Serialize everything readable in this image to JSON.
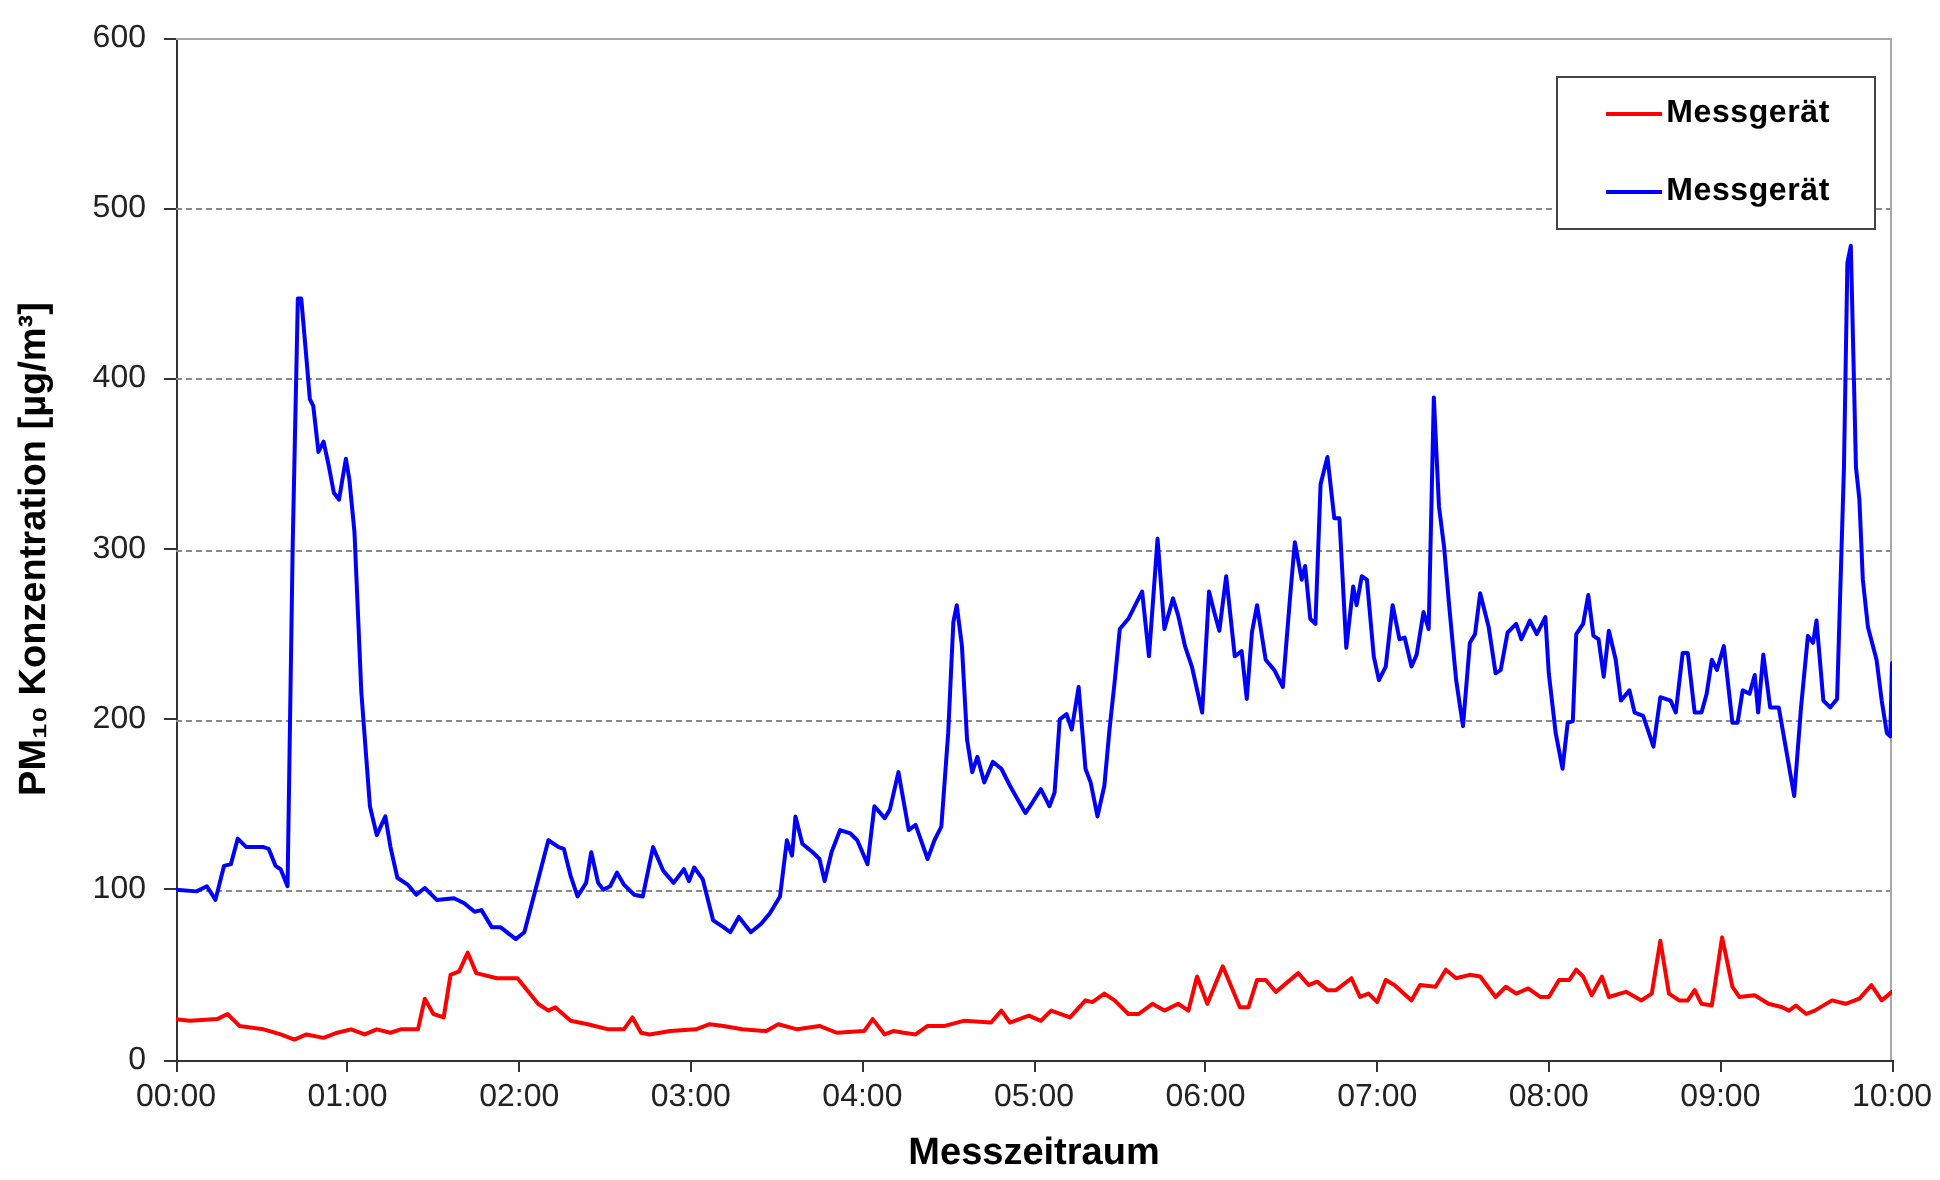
{
  "chart_data": {
    "type": "line",
    "xlabel": "Messzeitraum",
    "ylabel": "PM₁₀ Konzentration [µg/m³]",
    "xlim": [
      0,
      10
    ],
    "xticks": [
      {
        "value": 0,
        "label": "00:00"
      },
      {
        "value": 1,
        "label": "01:00"
      },
      {
        "value": 2,
        "label": "02:00"
      },
      {
        "value": 3,
        "label": "03:00"
      },
      {
        "value": 4,
        "label": "04:00"
      },
      {
        "value": 5,
        "label": "05:00"
      },
      {
        "value": 6,
        "label": "06:00"
      },
      {
        "value": 7,
        "label": "07:00"
      },
      {
        "value": 8,
        "label": "08:00"
      },
      {
        "value": 9,
        "label": "09:00"
      },
      {
        "value": 10,
        "label": "10:00"
      }
    ],
    "ylim": [
      0,
      600
    ],
    "yticks": [
      0,
      100,
      200,
      300,
      400,
      500,
      600
    ],
    "grid": "y",
    "legend": "top right",
    "marker": "none",
    "series": [
      {
        "name": "Messgerät",
        "color": "#ff0000",
        "x": [
          0,
          0.08,
          0.24,
          0.3,
          0.37,
          0.51,
          0.61,
          0.69,
          0.76,
          0.86,
          0.94,
          1.02,
          1.1,
          1.17,
          1.25,
          1.31,
          1.41,
          1.45,
          1.5,
          1.56,
          1.6,
          1.65,
          1.7,
          1.75,
          1.87,
          1.99,
          2.11,
          2.17,
          2.21,
          2.3,
          2.4,
          2.52,
          2.61,
          2.66,
          2.71,
          2.76,
          2.88,
          3.03,
          3.11,
          3.19,
          3.3,
          3.44,
          3.51,
          3.62,
          3.75,
          3.85,
          4.01,
          4.06,
          4.13,
          4.18,
          4.24,
          4.31,
          4.38,
          4.48,
          4.59,
          4.75,
          4.81,
          4.86,
          4.97,
          5.04,
          5.1,
          5.21,
          5.3,
          5.34,
          5.41,
          5.47,
          5.55,
          5.61,
          5.69,
          5.76,
          5.84,
          5.9,
          5.95,
          6.01,
          6.1,
          6.2,
          6.25,
          6.3,
          6.35,
          6.41,
          6.54,
          6.6,
          6.65,
          6.71,
          6.76,
          6.85,
          6.9,
          6.95,
          7.0,
          7.05,
          7.1,
          7.2,
          7.25,
          7.34,
          7.4,
          7.46,
          7.54,
          7.6,
          7.69,
          7.75,
          7.81,
          7.88,
          7.95,
          8.0,
          8.06,
          8.12,
          8.16,
          8.2,
          8.25,
          8.31,
          8.35,
          8.45,
          8.54,
          8.6,
          8.65,
          8.7,
          8.76,
          8.81,
          8.85,
          8.89,
          8.95,
          9.01,
          9.07,
          9.11,
          9.2,
          9.28,
          9.32,
          9.36,
          9.4,
          9.44,
          9.5,
          9.55,
          9.65,
          9.73,
          9.81,
          9.88,
          9.94,
          10
        ],
        "values": [
          24,
          23,
          24,
          27,
          20,
          18,
          15,
          12,
          15,
          13,
          16,
          18,
          15,
          18,
          16,
          18,
          18,
          36,
          27,
          25,
          50,
          52,
          63,
          51,
          48,
          48,
          33,
          29,
          31,
          23,
          21,
          18,
          18,
          25,
          16,
          15,
          17,
          18,
          21,
          20,
          18,
          17,
          21,
          18,
          20,
          16,
          17,
          24,
          15,
          17,
          16,
          15,
          20,
          20,
          23,
          22,
          29,
          22,
          26,
          23,
          29,
          25,
          35,
          34,
          39,
          35,
          27,
          27,
          33,
          29,
          33,
          29,
          49,
          33,
          55,
          31,
          31,
          47,
          47,
          40,
          51,
          44,
          46,
          41,
          41,
          48,
          37,
          39,
          34,
          47,
          44,
          35,
          44,
          43,
          53,
          48,
          50,
          49,
          37,
          43,
          39,
          42,
          37,
          37,
          47,
          47,
          53,
          49,
          38,
          49,
          37,
          40,
          35,
          39,
          70,
          39,
          35,
          35,
          41,
          33,
          32,
          72,
          43,
          37,
          38,
          33,
          32,
          31,
          29,
          32,
          27,
          29,
          35,
          33,
          36,
          44,
          35,
          40
        ]
      },
      {
        "name": "Messgerät",
        "color": "#0000ff",
        "x": [
          0,
          0.12,
          0.18,
          0.23,
          0.28,
          0.32,
          0.36,
          0.41,
          0.51,
          0.54,
          0.58,
          0.61,
          0.65,
          0.68,
          0.71,
          0.73,
          0.76,
          0.78,
          0.8,
          0.83,
          0.86,
          0.89,
          0.92,
          0.95,
          0.99,
          1.01,
          1.04,
          1.08,
          1.13,
          1.17,
          1.22,
          1.25,
          1.29,
          1.35,
          1.4,
          1.45,
          1.52,
          1.62,
          1.68,
          1.74,
          1.78,
          1.84,
          1.89,
          1.98,
          2.03,
          2.09,
          2.17,
          2.23,
          2.26,
          2.3,
          2.34,
          2.39,
          2.42,
          2.46,
          2.49,
          2.53,
          2.57,
          2.61,
          2.67,
          2.72,
          2.78,
          2.84,
          2.9,
          2.96,
          2.99,
          3.02,
          3.07,
          3.13,
          3.19,
          3.23,
          3.28,
          3.35,
          3.41,
          3.46,
          3.52,
          3.56,
          3.59,
          3.61,
          3.65,
          3.71,
          3.75,
          3.78,
          3.82,
          3.87,
          3.93,
          3.97,
          4.03,
          4.07,
          4.13,
          4.16,
          4.21,
          4.27,
          4.31,
          4.38,
          4.42,
          4.46,
          4.5,
          4.53,
          4.55,
          4.58,
          4.61,
          4.64,
          4.67,
          4.71,
          4.76,
          4.81,
          4.86,
          4.91,
          4.95,
          4.99,
          5.04,
          5.09,
          5.12,
          5.15,
          5.19,
          5.22,
          5.26,
          5.3,
          5.33,
          5.37,
          5.41,
          5.44,
          5.47,
          5.5,
          5.55,
          5.59,
          5.63,
          5.67,
          5.72,
          5.76,
          5.81,
          5.84,
          5.88,
          5.92,
          5.98,
          6.02,
          6.05,
          6.08,
          6.12,
          6.17,
          6.21,
          6.24,
          6.27,
          6.3,
          6.35,
          6.4,
          6.45,
          6.49,
          6.52,
          6.56,
          6.58,
          6.61,
          6.64,
          6.67,
          6.71,
          6.75,
          6.78,
          6.82,
          6.86,
          6.88,
          6.91,
          6.94,
          6.98,
          7.01,
          7.05,
          7.09,
          7.13,
          7.16,
          7.2,
          7.23,
          7.27,
          7.3,
          7.33,
          7.36,
          7.39,
          7.42,
          7.46,
          7.5,
          7.54,
          7.57,
          7.6,
          7.65,
          7.69,
          7.72,
          7.76,
          7.81,
          7.84,
          7.89,
          7.93,
          7.98,
          8.0,
          8.04,
          8.08,
          8.11,
          8.14,
          8.16,
          8.2,
          8.23,
          8.26,
          8.29,
          8.32,
          8.35,
          8.39,
          8.42,
          8.47,
          8.5,
          8.55,
          8.61,
          8.65,
          8.71,
          8.74,
          8.78,
          8.81,
          8.85,
          8.89,
          8.92,
          8.95,
          8.98,
          9.02,
          9.07,
          9.1,
          9.13,
          9.17,
          9.2,
          9.22,
          9.25,
          9.29,
          9.34,
          9.38,
          9.43,
          9.47,
          9.51,
          9.54,
          9.56,
          9.6,
          9.64,
          9.68,
          9.72,
          9.74,
          9.76,
          9.79,
          9.81,
          9.83,
          9.86,
          9.91,
          9.94,
          9.97,
          9.99,
          10
        ],
        "values": [
          100,
          99,
          102,
          94,
          114,
          115,
          130,
          125,
          125,
          124,
          114,
          112,
          102,
          302,
          447,
          447,
          412,
          388,
          384,
          357,
          363,
          349,
          333,
          329,
          353,
          341,
          310,
          216,
          149,
          132,
          143,
          125,
          107,
          103,
          97,
          101,
          94,
          95,
          92,
          87,
          88,
          78,
          78,
          71,
          75,
          98,
          129,
          125,
          124,
          108,
          96,
          104,
          122,
          104,
          100,
          102,
          110,
          103,
          97,
          96,
          125,
          111,
          104,
          112,
          105,
          113,
          106,
          82,
          78,
          75,
          84,
          75,
          80,
          86,
          96,
          129,
          120,
          143,
          127,
          122,
          118,
          105,
          122,
          135,
          133,
          129,
          115,
          149,
          142,
          147,
          169,
          135,
          138,
          118,
          129,
          137,
          192,
          257,
          267,
          243,
          188,
          169,
          178,
          163,
          175,
          171,
          161,
          152,
          145,
          151,
          159,
          149,
          157,
          200,
          203,
          194,
          219,
          171,
          163,
          143,
          161,
          194,
          222,
          253,
          259,
          267,
          275,
          237,
          306,
          253,
          271,
          261,
          243,
          231,
          204,
          275,
          263,
          252,
          284,
          237,
          240,
          212,
          251,
          267,
          235,
          229,
          219,
          269,
          304,
          282,
          290,
          259,
          256,
          338,
          354,
          318,
          318,
          242,
          278,
          267,
          284,
          282,
          237,
          223,
          231,
          267,
          247,
          248,
          231,
          238,
          263,
          253,
          389,
          325,
          301,
          266,
          223,
          196,
          245,
          250,
          274,
          254,
          227,
          229,
          251,
          256,
          247,
          258,
          250,
          260,
          227,
          192,
          171,
          198,
          199,
          250,
          256,
          273,
          249,
          247,
          225,
          252,
          235,
          211,
          217,
          204,
          202,
          184,
          213,
          211,
          204,
          239,
          239,
          204,
          204,
          215,
          235,
          229,
          243,
          198,
          198,
          217,
          215,
          226,
          204,
          238,
          207,
          207,
          184,
          155,
          207,
          249,
          245,
          258,
          211,
          207,
          212,
          348,
          468,
          478,
          348,
          329,
          282,
          254,
          235,
          211,
          192,
          190,
          233
        ]
      }
    ]
  }
}
